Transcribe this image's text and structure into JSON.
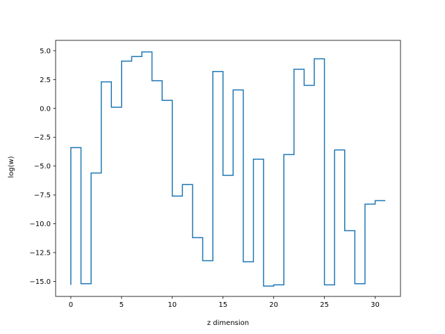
{
  "chart_data": {
    "type": "line",
    "drawstyle": "steps",
    "title": "",
    "xlabel": "z dimension",
    "ylabel": "log(w)",
    "xlim": [
      -1.5,
      32.5
    ],
    "ylim": [
      -16.3,
      5.9
    ],
    "xticks": [
      0,
      5,
      10,
      15,
      20,
      25,
      30
    ],
    "xtick_labels": [
      "0",
      "5",
      "10",
      "15",
      "20",
      "25",
      "30"
    ],
    "yticks": [
      -15.0,
      -12.5,
      -10.0,
      -7.5,
      -5.0,
      -2.5,
      0.0,
      2.5,
      5.0
    ],
    "ytick_labels": [
      "−15.0",
      "−12.5",
      "−10.0",
      "−7.5",
      "−5.0",
      "−2.5",
      "0.0",
      "2.5",
      "5.0"
    ],
    "grid": false,
    "legend": "none",
    "series": [
      {
        "color": "#1f77b4",
        "x": [
          0,
          1,
          2,
          3,
          4,
          5,
          6,
          7,
          8,
          9,
          10,
          11,
          12,
          13,
          14,
          15,
          16,
          17,
          18,
          19,
          20,
          21,
          22,
          23,
          24,
          25,
          26,
          27,
          28,
          29,
          30,
          31
        ],
        "values": [
          -15.3,
          -3.4,
          -15.2,
          -5.6,
          2.3,
          0.1,
          4.1,
          4.5,
          4.9,
          2.4,
          0.7,
          -7.6,
          -6.6,
          -11.2,
          -13.2,
          3.2,
          -5.8,
          1.6,
          -13.3,
          -4.4,
          -15.4,
          -15.3,
          -4.0,
          3.4,
          2.0,
          4.3,
          -15.3,
          -3.6,
          -10.6,
          -15.2,
          -8.3,
          -8.0
        ]
      }
    ]
  }
}
